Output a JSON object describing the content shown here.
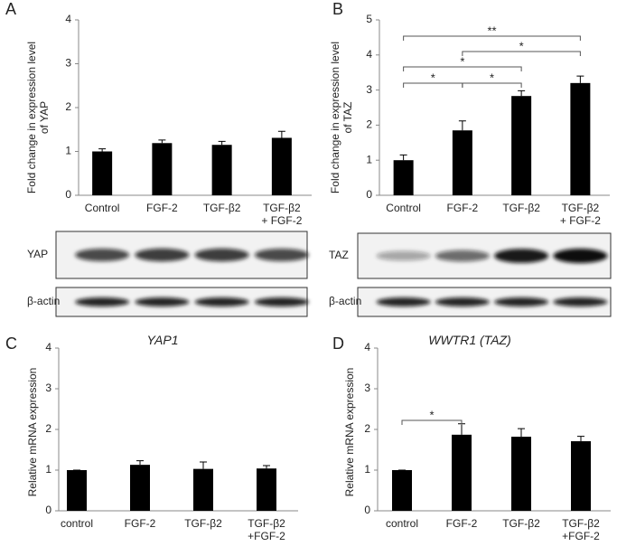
{
  "chart_data": [
    {
      "type": "bar",
      "panel": "A",
      "ylabel": "Fold change in expression level of YAP",
      "categories": [
        "Control",
        "FGF-2",
        "TGF-β2",
        "TGF-β2\n+ FGF-2"
      ],
      "values": [
        1.0,
        1.19,
        1.15,
        1.31
      ],
      "errors": [
        0.06,
        0.07,
        0.08,
        0.15
      ],
      "color": "#000000",
      "ylim": [
        0,
        4
      ],
      "yticks": [
        0,
        1,
        2,
        3,
        4
      ],
      "blots": [
        {
          "label": "YAP"
        },
        {
          "label": "β-actin"
        }
      ]
    },
    {
      "type": "bar",
      "panel": "B",
      "ylabel": "Fold change in expression level of TAZ",
      "categories": [
        "Control",
        "FGF-2",
        "TGF-β2",
        "TGF-β2\n+ FGF-2"
      ],
      "values": [
        1.0,
        1.85,
        2.83,
        3.2
      ],
      "errors": [
        0.15,
        0.27,
        0.15,
        0.2
      ],
      "color": "#000000",
      "ylim": [
        0,
        5
      ],
      "yticks": [
        0,
        1,
        2,
        3,
        4,
        5
      ],
      "comparisons": [
        {
          "between": [
            0,
            1
          ],
          "label": "*"
        },
        {
          "between": [
            1,
            2
          ],
          "label": "*"
        },
        {
          "between": [
            0,
            2
          ],
          "label": "*"
        },
        {
          "between": [
            1,
            3
          ],
          "label": "*"
        },
        {
          "between": [
            0,
            3
          ],
          "label": "**"
        }
      ],
      "blots": [
        {
          "label": "TAZ"
        },
        {
          "label": "β-actin"
        }
      ]
    },
    {
      "type": "bar",
      "panel": "C",
      "title": "YAP1",
      "ylabel": "Relative mRNA expression",
      "categories": [
        "control",
        "FGF-2",
        "TGF-β2",
        "TGF-β2\n+FGF-2"
      ],
      "values": [
        1.0,
        1.13,
        1.03,
        1.04
      ],
      "errors": [
        0.0,
        0.1,
        0.17,
        0.07
      ],
      "color": "#000000",
      "ylim": [
        0,
        4
      ],
      "yticks": [
        0,
        1,
        2,
        3,
        4
      ]
    },
    {
      "type": "bar",
      "panel": "D",
      "title": "WWTR1 (TAZ)",
      "ylabel": "Relative mRNA expression",
      "categories": [
        "control",
        "FGF-2",
        "TGF-β2",
        "TGF-β2\n+FGF-2"
      ],
      "values": [
        1.0,
        1.87,
        1.82,
        1.71
      ],
      "errors": [
        0.0,
        0.27,
        0.2,
        0.12
      ],
      "color": "#000000",
      "ylim": [
        0,
        4
      ],
      "yticks": [
        0,
        1,
        2,
        3,
        4
      ],
      "comparisons": [
        {
          "between": [
            0,
            1
          ],
          "label": "*"
        }
      ]
    }
  ]
}
